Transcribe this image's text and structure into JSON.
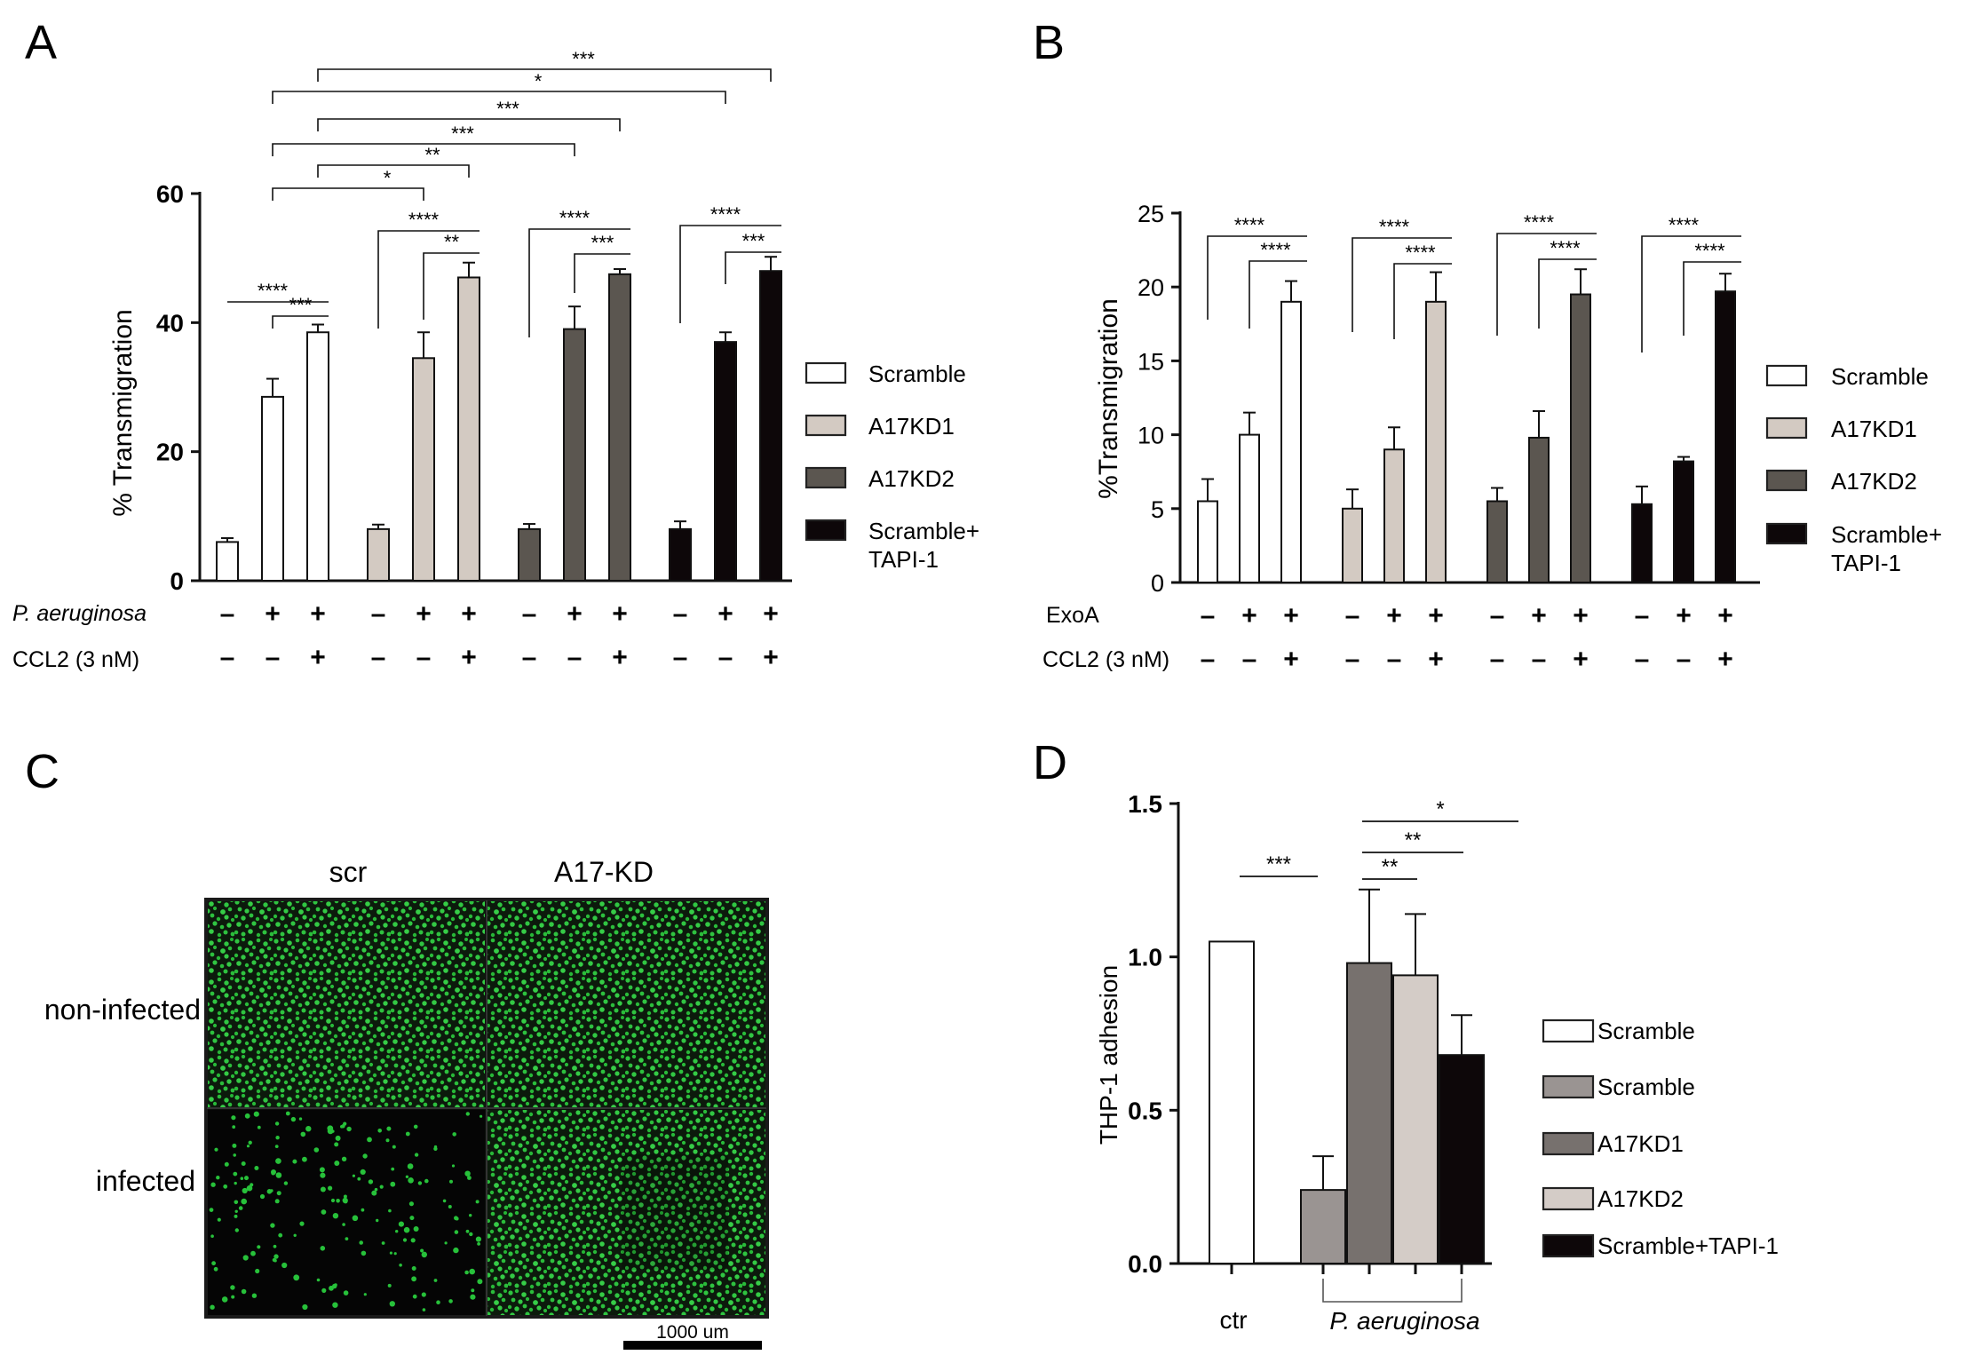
{
  "panel_letters": [
    "A",
    "B",
    "C",
    "D"
  ],
  "colors": {
    "scramble": "#ffffff",
    "a17kd1": "#d3cac2",
    "a17kd2": "#5b5650",
    "tapi": "#0d0709",
    "d_scramble_infected": "#9a9492",
    "d_a17kd1": "#77716e",
    "d_a17kd2": "#d4ccc7",
    "fluor_green": "#27c13a"
  },
  "chart_data": [
    {
      "panel": "A",
      "type": "bar",
      "ylabel": "% Transmigration",
      "ylim": [
        0,
        60
      ],
      "yticks": [
        "0",
        "20",
        "40",
        "60"
      ],
      "series": [
        {
          "name": "Scramble",
          "values": [
            6,
            28.5,
            38.5
          ],
          "errors": [
            0.6,
            2.8,
            1.2
          ]
        },
        {
          "name": "A17KD1",
          "values": [
            8,
            34.5,
            47
          ],
          "errors": [
            0.7,
            4,
            2.3
          ]
        },
        {
          "name": "A17KD2",
          "values": [
            8,
            39,
            47.5
          ],
          "errors": [
            0.8,
            3.5,
            0.8
          ]
        },
        {
          "name": "Scramble+ TAPI-1",
          "values": [
            8,
            37,
            48
          ],
          "errors": [
            1.2,
            1.5,
            2.2
          ]
        }
      ],
      "row_labels": [
        "P. aeruginosa",
        "CCL2 (3 nM)"
      ],
      "row_signs": [
        [
          "–",
          "+",
          "+"
        ],
        [
          "–",
          "–",
          "+"
        ]
      ],
      "significance": {
        "within_short": [
          "***",
          "**",
          "***",
          "***"
        ],
        "within_long": [
          "****",
          "****",
          "****",
          "****"
        ],
        "across": [
          "*",
          "**",
          "***",
          "***",
          "*",
          "***"
        ]
      }
    },
    {
      "panel": "B",
      "type": "bar",
      "ylabel": "%Transmigration",
      "ylim": [
        0,
        25
      ],
      "yticks": [
        "0",
        "5",
        "10",
        "15",
        "20",
        "25"
      ],
      "series": [
        {
          "name": "Scramble",
          "values": [
            5.5,
            10,
            19
          ],
          "errors": [
            1.5,
            1.5,
            1.4
          ]
        },
        {
          "name": "A17KD1",
          "values": [
            5,
            9,
            19
          ],
          "errors": [
            1.3,
            1.5,
            2
          ]
        },
        {
          "name": "A17KD2",
          "values": [
            5.5,
            9.8,
            19.5
          ],
          "errors": [
            0.9,
            1.8,
            1.7
          ]
        },
        {
          "name": "Scramble+ TAPI-1",
          "values": [
            5.3,
            8.2,
            19.7
          ],
          "errors": [
            1.2,
            0.3,
            1.2
          ]
        }
      ],
      "row_labels": [
        "ExoA",
        "CCL2 (3 nM)"
      ],
      "row_signs": [
        [
          "–",
          "+",
          "+"
        ],
        [
          "–",
          "–",
          "+"
        ]
      ],
      "significance": {
        "within_short": [
          "****",
          "****",
          "****",
          "****"
        ],
        "within_long": [
          "****",
          "****",
          "****",
          "****"
        ]
      }
    },
    {
      "panel": "D",
      "type": "bar",
      "ylabel": "THP-1 adhesion",
      "ylim": [
        0,
        1.5
      ],
      "yticks": [
        "0.0",
        "0.5",
        "1.0",
        "1.5"
      ],
      "categories": [
        "Scramble",
        "Scramble",
        "A17KD1",
        "A17KD2",
        "Scramble+TAPI-1"
      ],
      "values": [
        1.05,
        0.24,
        0.98,
        0.94,
        0.68
      ],
      "errors": [
        0,
        0.11,
        0.24,
        0.2,
        0.13
      ],
      "xlabels": [
        "ctr",
        "P. aeruginosa"
      ],
      "significance": [
        "***",
        "**",
        "**",
        "*"
      ]
    }
  ],
  "panel_c": {
    "col_labels": [
      "scr",
      "A17-KD"
    ],
    "row_labels": [
      "non-infected",
      "infected"
    ],
    "scale_bar": "1000 um"
  }
}
